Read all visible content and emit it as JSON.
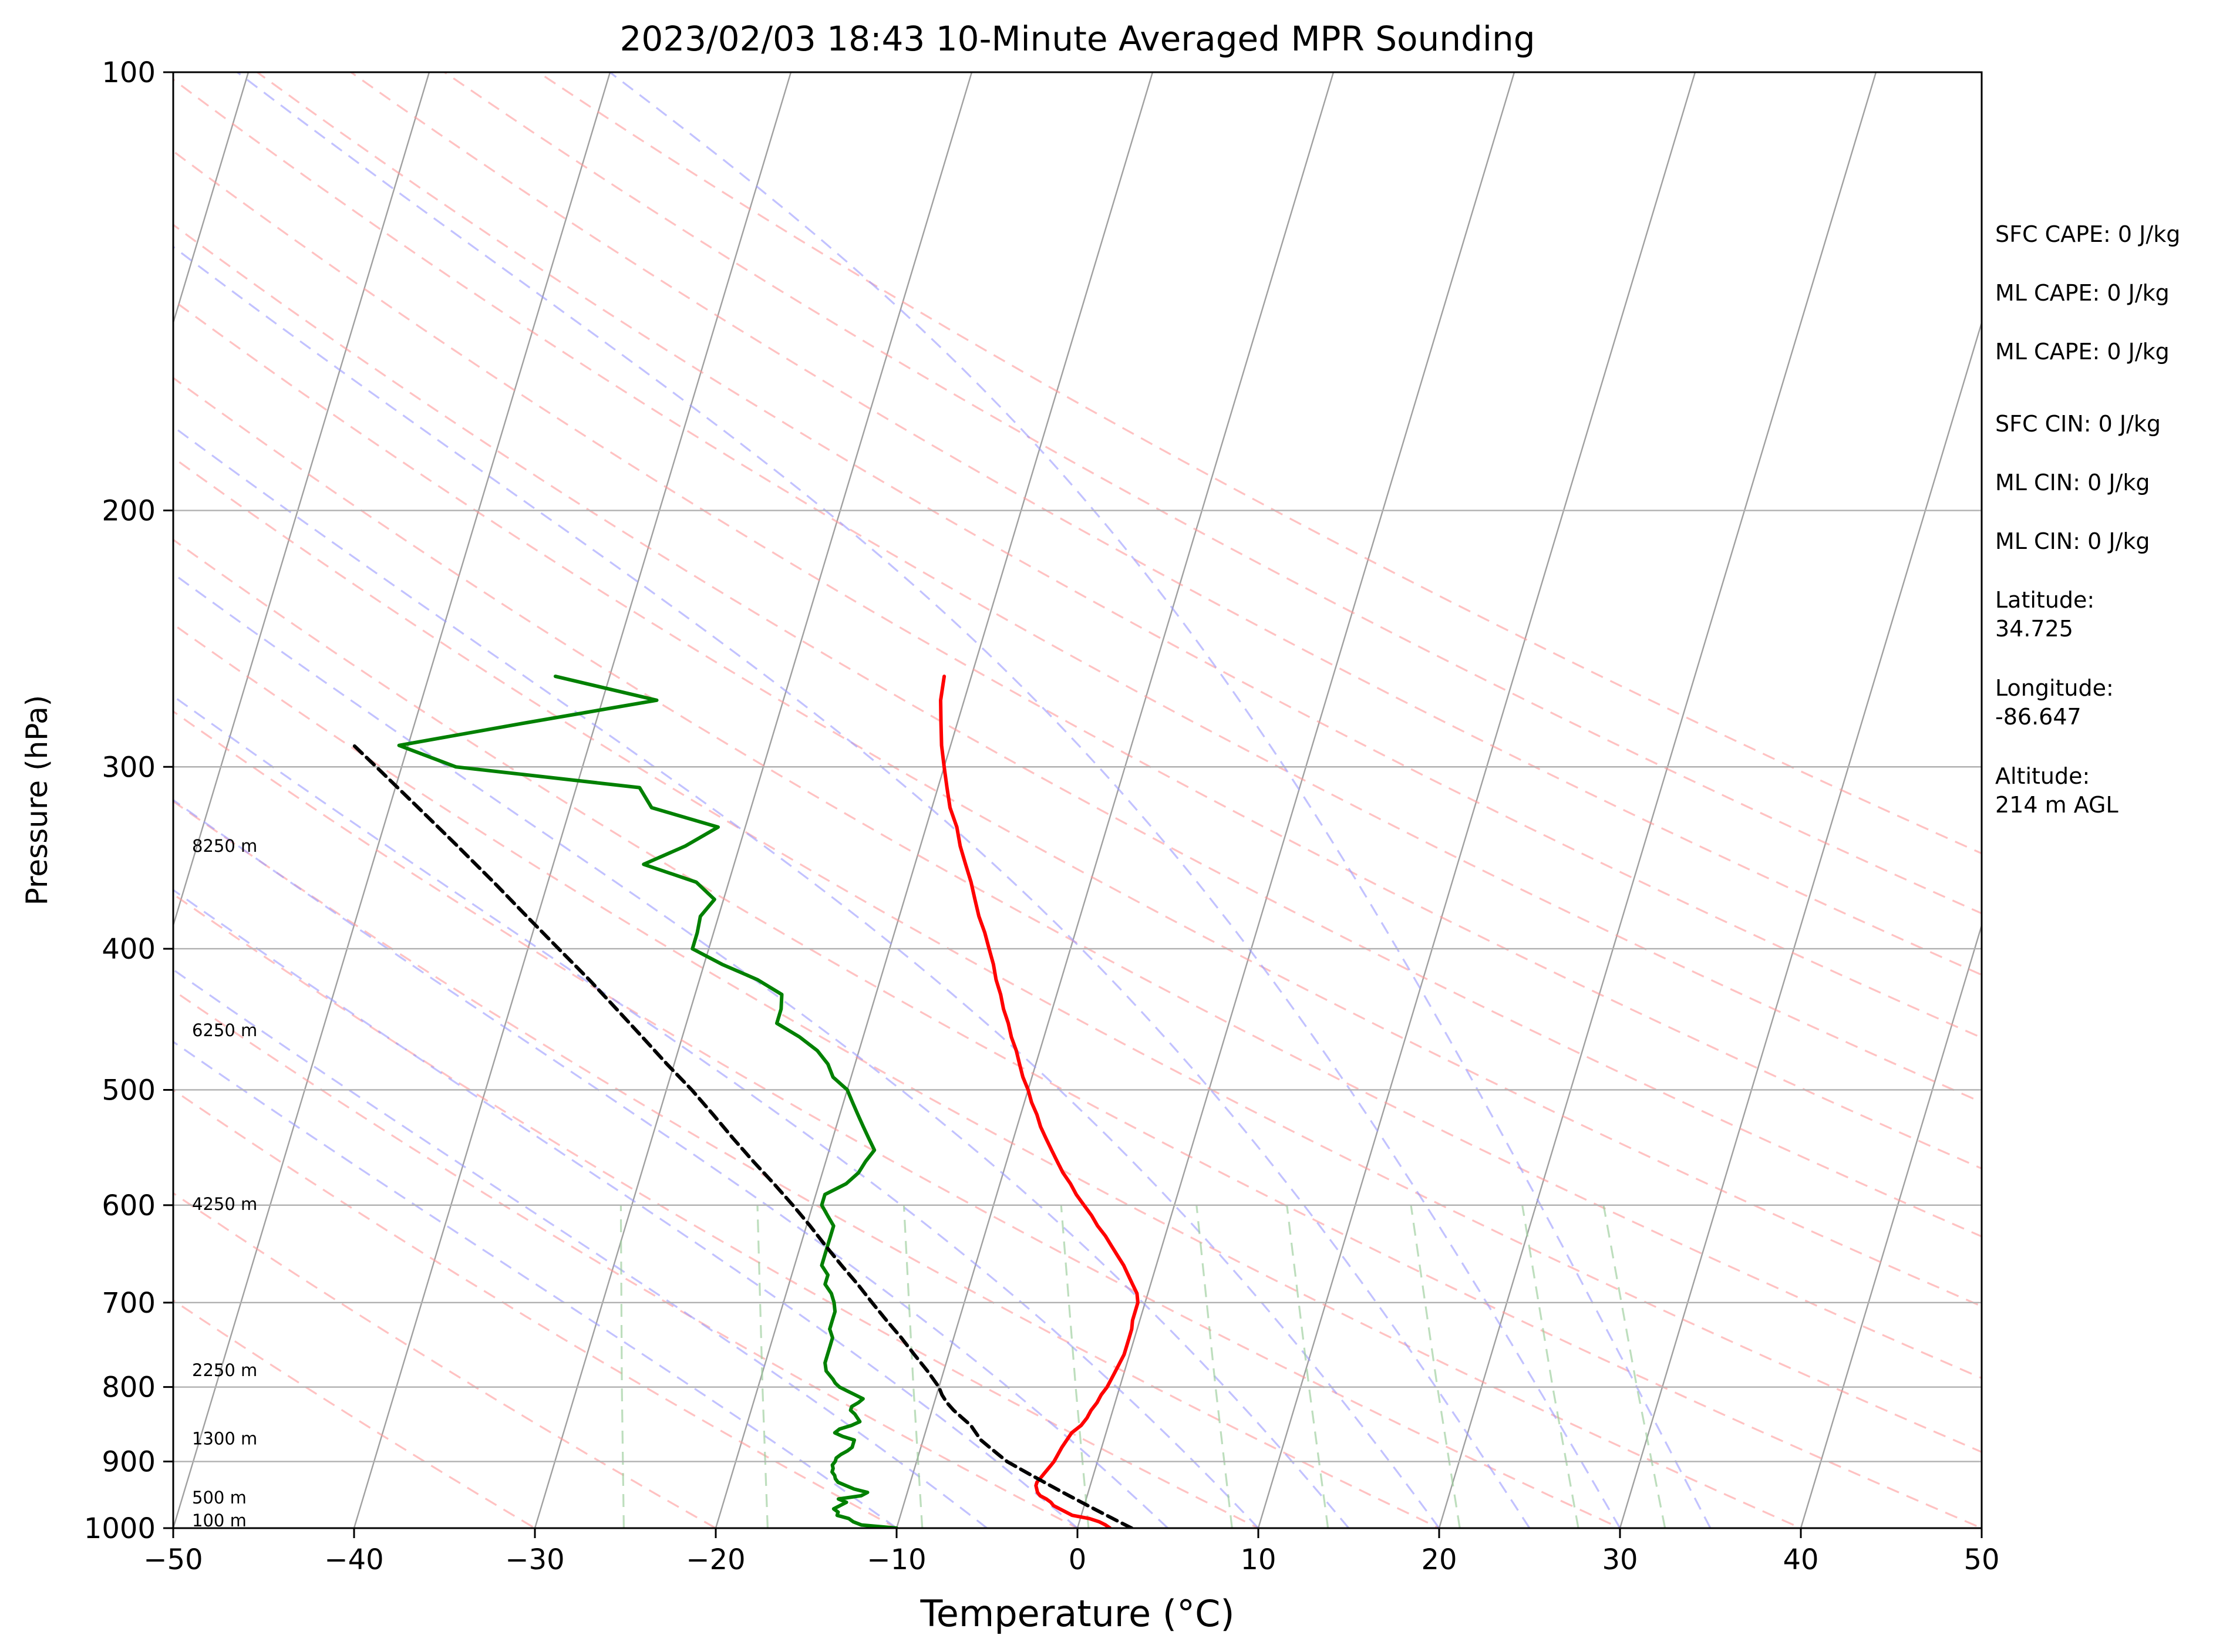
{
  "chart_data": {
    "type": "skew-t",
    "title": "2023/02/03 18:43 10-Minute Averaged MPR Sounding",
    "xlabel": "Temperature (°C)",
    "ylabel": "Pressure (hPa)",
    "xlim": [
      -50,
      50
    ],
    "ylim": [
      1000,
      100
    ],
    "y_scale": "log",
    "grid": true,
    "x_ticks": [
      -50,
      -40,
      -30,
      -20,
      -10,
      0,
      10,
      20,
      30,
      40,
      50
    ],
    "y_ticks": [
      100,
      200,
      300,
      400,
      500,
      600,
      700,
      800,
      900,
      1000
    ],
    "skew_isotherms_degC": [
      -150,
      -140,
      -130,
      -120,
      -110,
      -100,
      -90,
      -80,
      -70,
      -60,
      -50,
      -40,
      -30,
      -20,
      -10,
      0,
      10,
      20,
      30,
      40,
      50
    ],
    "dry_adiabats_degC": [
      -30,
      -20,
      -10,
      0,
      10,
      20,
      30,
      40,
      50,
      60,
      70,
      80,
      90,
      100,
      110,
      120,
      130,
      140,
      150
    ],
    "moist_adiabats_degC": [
      -10,
      -5,
      0,
      5,
      10,
      15,
      20,
      25,
      30,
      35
    ],
    "mixing_ratio_lines_gkg": [
      0.5,
      1,
      2,
      4,
      7,
      10,
      16,
      24,
      32
    ],
    "colors": {
      "temperature": "#ff0000",
      "dewpoint": "#008000",
      "parcel": "#000000",
      "isotherms": "#a0a0a0",
      "dry_adiabats": "#ff9999",
      "moist_adiabats": "#9999ff",
      "mixing_ratio": "#99cc99",
      "grid": "#b0b0b0"
    },
    "series": [
      {
        "key": "temperature",
        "pressure_hPa": [
          1000,
          995,
          990,
          985,
          980,
          975,
          970,
          965,
          960,
          955,
          950,
          945,
          940,
          935,
          930,
          925,
          920,
          915,
          910,
          905,
          900,
          880,
          860,
          850,
          840,
          830,
          820,
          810,
          800,
          790,
          780,
          770,
          760,
          750,
          740,
          730,
          720,
          710,
          700,
          690,
          680,
          670,
          660,
          650,
          640,
          630,
          620,
          610,
          600,
          590,
          580,
          570,
          560,
          550,
          540,
          530,
          520,
          510,
          500,
          490,
          480,
          470,
          460,
          450,
          440,
          430,
          420,
          410,
          400,
          390,
          380,
          370,
          360,
          350,
          340,
          330,
          320,
          310,
          300,
          290,
          280,
          270,
          260
        ],
        "values_degC": [
          1.8,
          1.5,
          1.1,
          0.5,
          -0.5,
          -0.9,
          -1.3,
          -1.7,
          -1.9,
          -2.2,
          -2.6,
          -2.8,
          -2.9,
          -3.0,
          -3.0,
          -2.9,
          -2.8,
          -2.7,
          -2.6,
          -2.5,
          -2.4,
          -2.2,
          -1.9,
          -1.5,
          -1.3,
          -1.2,
          -1.0,
          -0.9,
          -0.7,
          -0.6,
          -0.5,
          -0.4,
          -0.3,
          -0.3,
          -0.3,
          -0.3,
          -0.4,
          -0.4,
          -0.4,
          -0.6,
          -1.0,
          -1.4,
          -1.8,
          -2.3,
          -2.8,
          -3.3,
          -3.9,
          -4.4,
          -5.0,
          -5.6,
          -6.1,
          -6.7,
          -7.2,
          -7.7,
          -8.2,
          -8.7,
          -9.1,
          -9.6,
          -10.0,
          -10.5,
          -10.9,
          -11.3,
          -11.8,
          -12.2,
          -12.7,
          -13.1,
          -13.6,
          -14.0,
          -14.5,
          -15.0,
          -15.6,
          -16.1,
          -16.6,
          -17.2,
          -17.8,
          -18.3,
          -19.0,
          -19.5,
          -20.0,
          -20.5,
          -20.9,
          -21.3,
          -21.5
        ]
      },
      {
        "key": "dewpoint",
        "pressure_hPa": [
          1000,
          995,
          990,
          985,
          980,
          975,
          970,
          965,
          960,
          955,
          950,
          945,
          940,
          935,
          930,
          925,
          920,
          915,
          910,
          905,
          900,
          895,
          890,
          885,
          880,
          875,
          870,
          865,
          860,
          855,
          850,
          845,
          840,
          835,
          830,
          825,
          820,
          815,
          810,
          805,
          800,
          795,
          790,
          780,
          770,
          760,
          750,
          740,
          730,
          720,
          710,
          700,
          690,
          680,
          670,
          660,
          650,
          640,
          630,
          620,
          610,
          600,
          590,
          580,
          570,
          560,
          550,
          540,
          530,
          520,
          510,
          500,
          490,
          480,
          470,
          460,
          450,
          440,
          430,
          420,
          410,
          400,
          390,
          380,
          370,
          360,
          350,
          340,
          330,
          320,
          310,
          300,
          290,
          280,
          270,
          260
        ],
        "values_degC": [
          -10.0,
          -12.0,
          -12.5,
          -12.8,
          -13.5,
          -13.5,
          -13.8,
          -13.5,
          -13.2,
          -13.7,
          -12.5,
          -12.2,
          -13.0,
          -13.5,
          -14.0,
          -14.2,
          -14.3,
          -14.5,
          -14.5,
          -14.6,
          -14.5,
          -14.5,
          -14.3,
          -14.0,
          -13.8,
          -13.8,
          -13.8,
          -14.5,
          -15.0,
          -14.8,
          -14.2,
          -13.8,
          -14.0,
          -14.2,
          -14.5,
          -14.5,
          -14.2,
          -14.0,
          -14.5,
          -15.0,
          -15.5,
          -15.8,
          -16.0,
          -16.5,
          -16.7,
          -16.7,
          -16.7,
          -16.7,
          -17.0,
          -17.0,
          -17.0,
          -17.2,
          -17.5,
          -18.0,
          -18.0,
          -18.5,
          -18.5,
          -18.5,
          -18.5,
          -18.5,
          -19.0,
          -19.5,
          -19.5,
          -18.5,
          -18.0,
          -17.8,
          -17.5,
          -18.0,
          -18.5,
          -19.0,
          -19.5,
          -20.0,
          -21.0,
          -21.5,
          -22.3,
          -23.5,
          -25.0,
          -25.0,
          -25.2,
          -26.8,
          -29.0,
          -30.9,
          -30.9,
          -31.0,
          -30.5,
          -31.8,
          -35.0,
          -33.0,
          -31.5,
          -35.5,
          -36.5,
          -47.0,
          -50.5,
          -44.0,
          -37.0,
          -43.0,
          -41.0,
          -42.0,
          -50.0,
          -56.0,
          -47.0
        ]
      },
      {
        "key": "parcel",
        "pressure_hPa": [
          1000,
          990,
          980,
          970,
          960,
          950,
          940,
          930,
          920,
          910,
          900,
          890,
          880,
          870,
          860,
          850,
          840,
          830,
          820,
          810,
          800,
          780,
          760,
          740,
          720,
          700,
          680,
          660,
          640,
          620,
          600,
          580,
          560,
          540,
          520,
          500,
          480,
          460,
          440,
          420,
          400,
          380,
          360,
          340,
          320,
          300,
          290
        ],
        "values_degC": [
          3.0,
          2.2,
          1.4,
          0.6,
          -0.2,
          -1.0,
          -1.8,
          -2.6,
          -3.4,
          -4.2,
          -5.0,
          -5.6,
          -6.2,
          -6.8,
          -7.2,
          -7.6,
          -8.2,
          -8.8,
          -9.3,
          -9.7,
          -10.0,
          -10.9,
          -11.9,
          -12.9,
          -14.0,
          -15.1,
          -16.2,
          -17.4,
          -18.6,
          -19.8,
          -21.1,
          -22.5,
          -24.0,
          -25.5,
          -27.0,
          -28.6,
          -30.4,
          -32.2,
          -34.1,
          -36.1,
          -38.3,
          -40.6,
          -43.0,
          -45.6,
          -48.4,
          -51.4,
          -53.0
        ]
      }
    ],
    "height_labels": [
      {
        "text": "100 m",
        "pressure_hPa": 988
      },
      {
        "text": "500 m",
        "pressure_hPa": 953
      },
      {
        "text": "1300 m",
        "pressure_hPa": 868
      },
      {
        "text": "2250 m",
        "pressure_hPa": 779
      },
      {
        "text": "4250 m",
        "pressure_hPa": 599
      },
      {
        "text": "6250 m",
        "pressure_hPa": 455
      },
      {
        "text": "8250 m",
        "pressure_hPa": 340
      }
    ],
    "info_panel": [
      "SFC CAPE: 0 J/kg",
      "ML CAPE: 0 J/kg",
      "ML CAPE: 0 J/kg",
      "SFC CIN: 0 J/kg",
      "ML CIN: 0 J/kg",
      "ML CIN: 0 J/kg",
      "Latitude:\n34.725",
      "Longitude:\n-86.647",
      "Altitude:\n214 m AGL"
    ]
  }
}
